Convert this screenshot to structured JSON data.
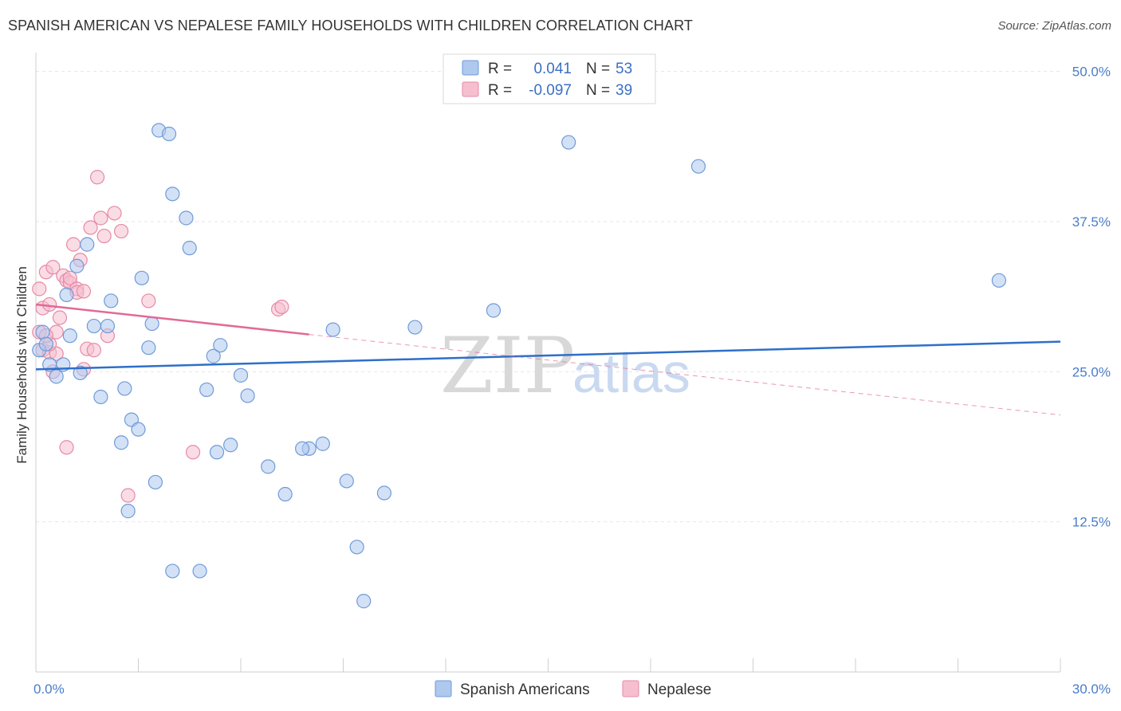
{
  "header": {
    "title": "SPANISH AMERICAN VS NEPALESE FAMILY HOUSEHOLDS WITH CHILDREN CORRELATION CHART",
    "source": "Source: ZipAtlas.com"
  },
  "watermark": {
    "zip": "ZIP",
    "atlas": "atlas"
  },
  "legend": {
    "rows": [
      {
        "r_label": "R =",
        "r_value": "0.041",
        "n_label": "N =",
        "n_value": "53"
      },
      {
        "r_label": "R =",
        "r_value": "-0.097",
        "n_label": "N =",
        "n_value": "39"
      }
    ]
  },
  "bottom_legend": [
    "Spanish Americans",
    "Nepalese"
  ],
  "colors": {
    "blue_fill": "#aec8ee",
    "blue_stroke": "#6f9bd8",
    "blue_line": "#2e6fc9",
    "pink_fill": "#f6bfd0",
    "pink_stroke": "#e68aa8",
    "pink_line": "#e26a96"
  },
  "chart_data": {
    "type": "scatter",
    "title": "SPANISH AMERICAN VS NEPALESE FAMILY HOUSEHOLDS WITH CHILDREN CORRELATION CHART",
    "xlabel": "",
    "ylabel": "Family Households with Children",
    "xlim": [
      0,
      30
    ],
    "ylim": [
      0,
      52.5
    ],
    "x_tick_labels": [
      "0.0%",
      "30.0%"
    ],
    "y_ticks": [
      12.5,
      25.0,
      37.5,
      50.0
    ],
    "y_tick_labels": [
      "12.5%",
      "25.0%",
      "37.5%",
      "50.0%"
    ],
    "grid": true,
    "series": [
      {
        "name": "Spanish Americans",
        "r": 0.041,
        "n": 53,
        "trend": {
          "x": [
            0,
            30
          ],
          "y": [
            25.2,
            27.5
          ]
        },
        "points": [
          [
            0.1,
            26.8
          ],
          [
            0.2,
            28.3
          ],
          [
            0.3,
            27.3
          ],
          [
            0.4,
            25.6
          ],
          [
            0.6,
            24.6
          ],
          [
            0.8,
            25.6
          ],
          [
            0.9,
            31.4
          ],
          [
            1.0,
            28.0
          ],
          [
            1.2,
            33.8
          ],
          [
            1.3,
            24.9
          ],
          [
            1.5,
            35.6
          ],
          [
            1.7,
            28.8
          ],
          [
            1.9,
            22.9
          ],
          [
            2.1,
            28.8
          ],
          [
            2.2,
            30.9
          ],
          [
            2.5,
            19.1
          ],
          [
            2.6,
            23.6
          ],
          [
            2.7,
            13.4
          ],
          [
            2.8,
            21.0
          ],
          [
            3.0,
            20.2
          ],
          [
            3.1,
            32.8
          ],
          [
            3.3,
            27.0
          ],
          [
            3.4,
            29.0
          ],
          [
            3.5,
            15.8
          ],
          [
            3.6,
            45.1
          ],
          [
            3.9,
            44.8
          ],
          [
            4.0,
            39.8
          ],
          [
            4.0,
            8.4
          ],
          [
            4.4,
            37.8
          ],
          [
            4.5,
            35.3
          ],
          [
            5.0,
            23.5
          ],
          [
            5.2,
            26.3
          ],
          [
            5.3,
            18.3
          ],
          [
            5.4,
            27.2
          ],
          [
            5.7,
            18.9
          ],
          [
            6.0,
            24.7
          ],
          [
            6.2,
            23.0
          ],
          [
            6.8,
            17.1
          ],
          [
            7.3,
            14.8
          ],
          [
            8.0,
            18.6
          ],
          [
            8.4,
            19.0
          ],
          [
            8.7,
            28.5
          ],
          [
            9.1,
            15.9
          ],
          [
            9.4,
            10.4
          ],
          [
            9.6,
            5.9
          ],
          [
            10.2,
            14.9
          ],
          [
            11.1,
            28.7
          ],
          [
            13.4,
            30.1
          ],
          [
            15.6,
            44.1
          ],
          [
            19.4,
            42.1
          ],
          [
            28.2,
            32.6
          ],
          [
            4.8,
            8.4
          ],
          [
            7.8,
            18.6
          ]
        ]
      },
      {
        "name": "Nepalese",
        "r": -0.097,
        "n": 39,
        "trend": {
          "x": [
            0,
            8
          ],
          "y": [
            30.6,
            28.1
          ]
        },
        "trend_dashed": {
          "x": [
            8,
            30
          ],
          "y": [
            28.1,
            21.4
          ]
        },
        "points": [
          [
            0.1,
            31.9
          ],
          [
            0.1,
            28.3
          ],
          [
            0.2,
            30.3
          ],
          [
            0.2,
            26.8
          ],
          [
            0.3,
            33.3
          ],
          [
            0.4,
            30.6
          ],
          [
            0.4,
            26.6
          ],
          [
            0.5,
            33.7
          ],
          [
            0.5,
            25.0
          ],
          [
            0.6,
            28.3
          ],
          [
            0.6,
            26.5
          ],
          [
            0.7,
            29.5
          ],
          [
            0.8,
            33.0
          ],
          [
            0.9,
            18.7
          ],
          [
            0.9,
            32.6
          ],
          [
            1.0,
            32.4
          ],
          [
            1.0,
            32.8
          ],
          [
            1.1,
            35.6
          ],
          [
            1.2,
            31.9
          ],
          [
            1.2,
            31.6
          ],
          [
            1.3,
            34.3
          ],
          [
            1.4,
            25.2
          ],
          [
            1.5,
            26.9
          ],
          [
            1.6,
            37.0
          ],
          [
            1.7,
            26.8
          ],
          [
            1.8,
            41.2
          ],
          [
            1.9,
            37.8
          ],
          [
            2.0,
            36.3
          ],
          [
            2.1,
            28.0
          ],
          [
            2.3,
            38.2
          ],
          [
            2.5,
            36.7
          ],
          [
            2.7,
            14.7
          ],
          [
            3.3,
            30.9
          ],
          [
            4.6,
            18.3
          ],
          [
            7.1,
            30.2
          ],
          [
            7.2,
            30.4
          ],
          [
            0.4,
            27.3
          ],
          [
            1.4,
            31.7
          ],
          [
            0.3,
            28.0
          ]
        ]
      }
    ]
  }
}
